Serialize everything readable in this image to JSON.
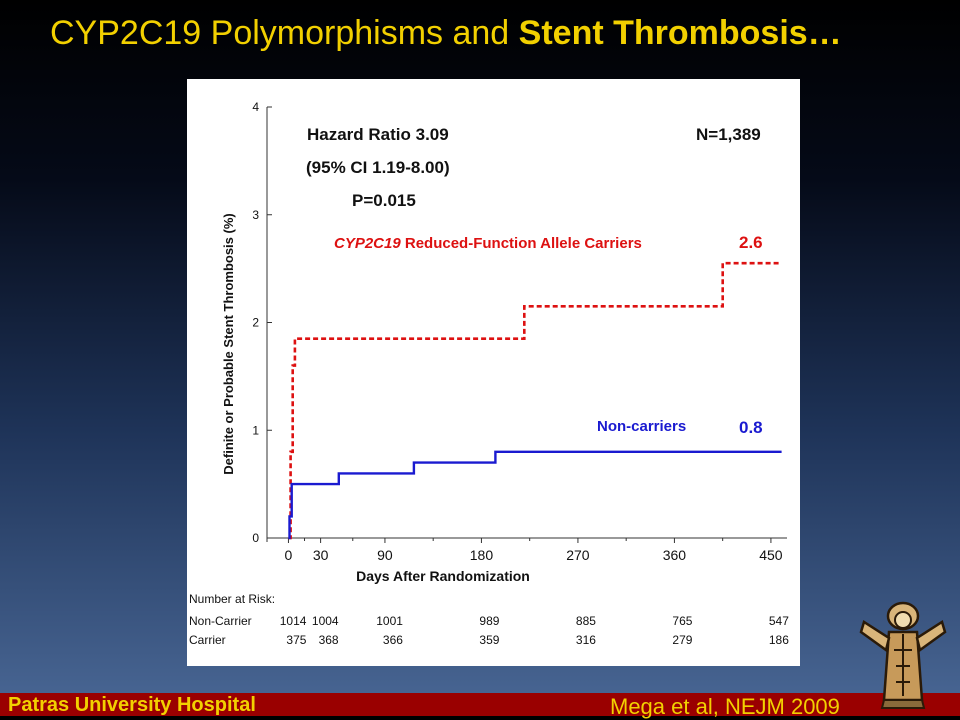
{
  "slide": {
    "title_part1": "CYP2C19 Polymorphisms and ",
    "title_part2": "Stent Thrombosis…",
    "footer_left": "Patras University Hospital",
    "footer_right": "Mega et al, NEJM 2009",
    "logo_icon": "saint-figure-logo",
    "colors": {
      "title": "#f2d000",
      "footer_bar": "#9a0000"
    }
  },
  "chart_data": {
    "type": "line",
    "xlabel": "Days After Randomization",
    "ylabel": "Definite or Probable Stent Thrombosis (%)",
    "xlim": [
      -20,
      465
    ],
    "ylim": [
      0,
      4
    ],
    "x_ticks": [
      0,
      30,
      90,
      180,
      270,
      360,
      450
    ],
    "y_ticks": [
      0,
      1,
      2,
      3,
      4
    ],
    "annotations": {
      "hazard_ratio": "Hazard Ratio 3.09",
      "ci": "(95% CI 1.19-8.00)",
      "p_value": "P=0.015",
      "n": "N=1,389"
    },
    "series": [
      {
        "name": "CYP2C19 Reduced-Function Allele Carriers",
        "name_italic": "CYP2C19",
        "name_rest": " Reduced-Function Allele Carriers",
        "end_label": "2.6",
        "color": "#dd1111",
        "style": "dashed",
        "x": [
          0,
          2,
          2,
          4,
          4,
          6,
          6,
          220,
          220,
          405,
          405,
          460
        ],
        "y": [
          0,
          0,
          0.8,
          0.8,
          1.6,
          1.6,
          1.85,
          1.85,
          2.15,
          2.15,
          2.55,
          2.55
        ]
      },
      {
        "name": "Non-carriers",
        "name_italic": "",
        "name_rest": "Non-carriers",
        "end_label": "0.8",
        "color": "#1a1ad0",
        "style": "solid",
        "x": [
          0,
          1,
          1,
          3,
          3,
          47,
          47,
          117,
          117,
          193,
          193,
          460
        ],
        "y": [
          0,
          0,
          0.2,
          0.2,
          0.5,
          0.5,
          0.6,
          0.6,
          0.7,
          0.7,
          0.8,
          0.8
        ]
      }
    ],
    "risk_table": {
      "title": "Number at Risk:",
      "rows": [
        {
          "label": "Non-Carrier",
          "values": [
            "1014",
            "1004",
            "1001",
            "989",
            "885",
            "765",
            "547"
          ]
        },
        {
          "label": "Carrier",
          "values": [
            "375",
            "368",
            "366",
            "359",
            "316",
            "279",
            "186"
          ]
        }
      ]
    }
  }
}
